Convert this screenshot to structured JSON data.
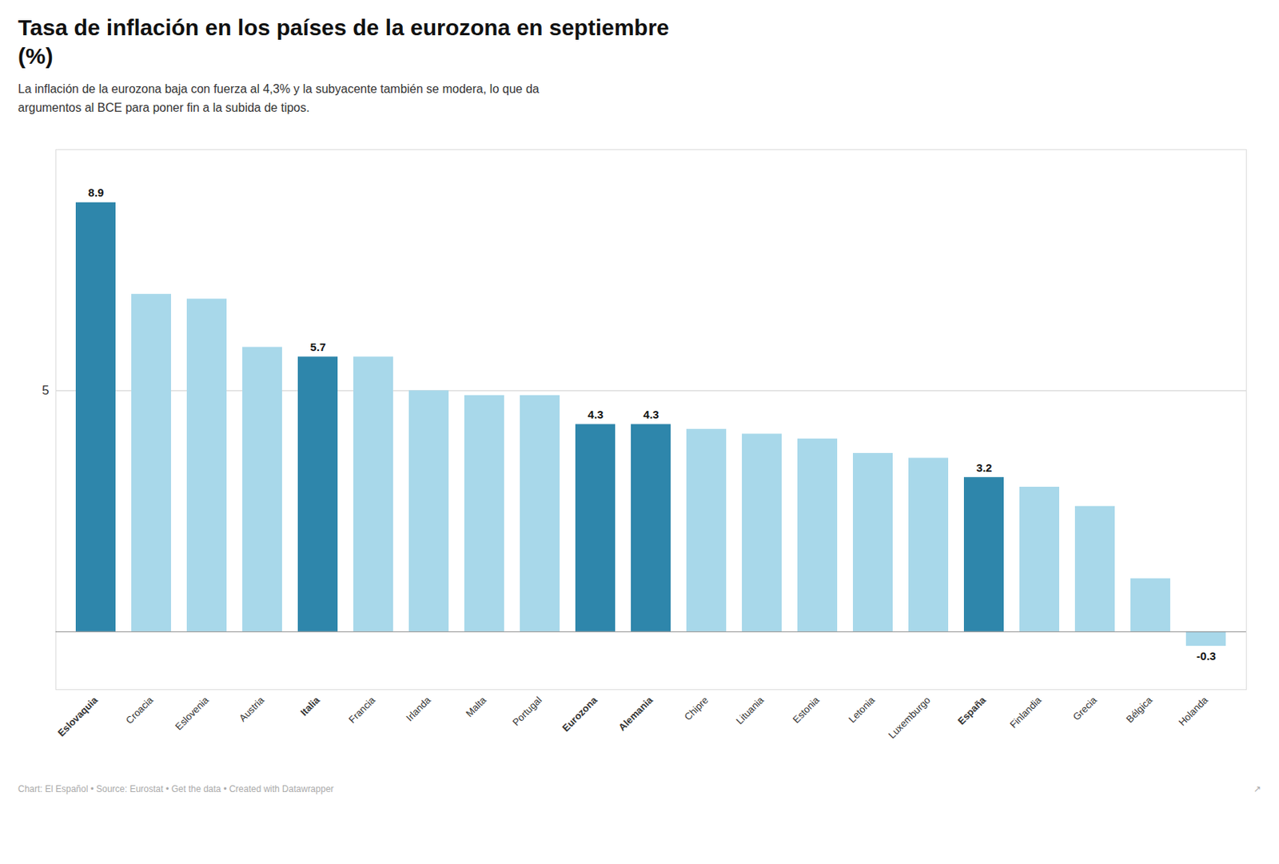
{
  "chart_data": {
    "type": "bar",
    "title": "Tasa de inflación en los países de la eurozona en septiembre\n(%)",
    "subtitle": "La inflación de la eurozona baja con fuerza al 4,3% y la subyacente también se modera, lo que da\nargumentos al BCE para poner fin a la subida de tipos.",
    "categories": [
      "Eslovaquia",
      "Croacia",
      "Eslovenia",
      "Austria",
      "Italia",
      "Francia",
      "Irlanda",
      "Malta",
      "Portugal",
      "Eurozona",
      "Alemania",
      "Chipre",
      "Lituania",
      "Estonia",
      "Letonia",
      "Luxemburgo",
      "España",
      "Finlandia",
      "Grecia",
      "Bélgica",
      "Holanda"
    ],
    "values": [
      8.9,
      7.0,
      6.9,
      5.9,
      5.7,
      5.7,
      5.0,
      4.9,
      4.9,
      4.3,
      4.3,
      4.2,
      4.1,
      4.0,
      3.7,
      3.6,
      3.2,
      3.0,
      2.6,
      1.1,
      -0.3
    ],
    "value_labels": [
      "8.9",
      null,
      null,
      null,
      "5.7",
      null,
      null,
      null,
      null,
      "4.3",
      "4.3",
      null,
      null,
      null,
      null,
      null,
      "3.2",
      null,
      null,
      null,
      "-0.3"
    ],
    "data_labels": true,
    "colors": [
      "#2e86ab",
      "#a8d8ea",
      "#a8d8ea",
      "#a8d8ea",
      "#2e86ab",
      "#a8d8ea",
      "#a8d8ea",
      "#a8d8ea",
      "#a8d8ea",
      "#2e86ab",
      "#2e86ab",
      "#a8d8ea",
      "#a8d8ea",
      "#a8d8ea",
      "#a8d8ea",
      "#a8d8ea",
      "#2e86ab",
      "#a8d8ea",
      "#a8d8ea",
      "#a8d8ea",
      "#a8d8ea"
    ],
    "ylim": [
      -1.2,
      10.0
    ],
    "yticks": [
      5
    ],
    "grid": true,
    "footer": "Chart: El Español • Source: Eurostat • Get the data • Created with Datawrapper",
    "footer_icon": "↗"
  }
}
